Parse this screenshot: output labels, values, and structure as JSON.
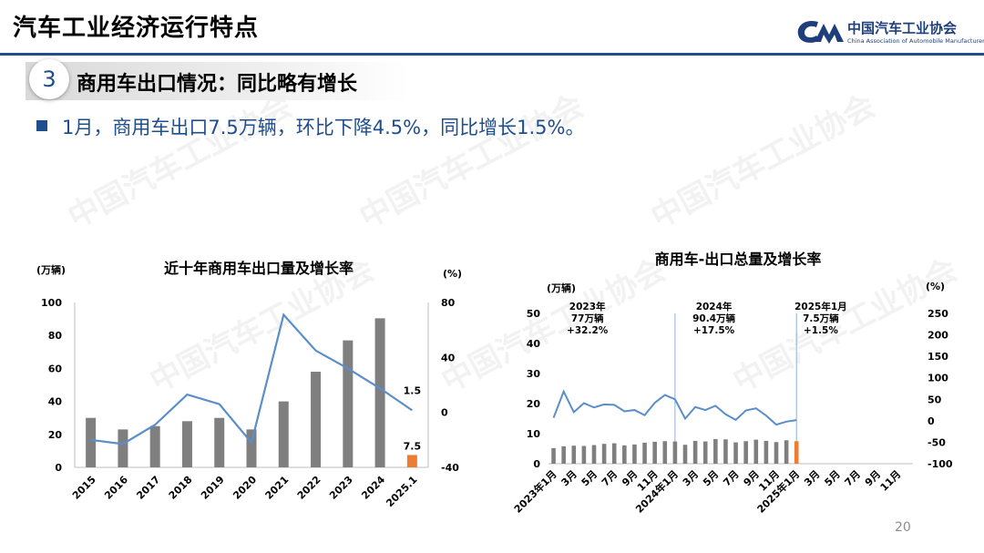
{
  "header": {
    "title": "汽车工业经济运行特点",
    "logo_cn": "中国汽车工业协会",
    "logo_en": "China Association of Automobile Manufacturers"
  },
  "section": {
    "number": "3",
    "title": "商用车出口情况：同比略有增长"
  },
  "bullet": {
    "text": "1月，商用车出口7.5万辆，环比下降4.5%，同比增长1.5%。"
  },
  "page_number": "20",
  "colors": {
    "accent": "#1f4e8c",
    "bar_gray": "#7f7f7f",
    "bar_highlight": "#ed7d31",
    "line_blue": "#5b8ec9"
  },
  "chart_data": [
    {
      "type": "bar",
      "title": "近十年商用车出口量及增长率",
      "left_unit": "(万辆)",
      "right_unit": "(%)",
      "categories": [
        "2015",
        "2016",
        "2017",
        "2018",
        "2019",
        "2020",
        "2021",
        "2022",
        "2023",
        "2024",
        "2025.1"
      ],
      "series": [
        {
          "kind": "bar",
          "axis": "left",
          "values": [
            30,
            23,
            25,
            28,
            30,
            23,
            40,
            58,
            77,
            90.4,
            7.5
          ],
          "highlight_last": true
        },
        {
          "kind": "line",
          "axis": "right",
          "values": [
            -20,
            -23,
            -9,
            13,
            6,
            -22,
            71,
            45,
            32,
            17.5,
            1.5
          ]
        }
      ],
      "left_ylim": [
        0,
        100
      ],
      "left_ticks": [
        "0",
        "20",
        "40",
        "60",
        "80",
        "100"
      ],
      "right_ylim": [
        -40,
        80
      ],
      "right_ticks": [
        "-40",
        "0",
        "40",
        "80"
      ],
      "data_labels": [
        {
          "category": "2025.1",
          "series": "bar",
          "text": "7.5"
        },
        {
          "category": "2025.1",
          "series": "line",
          "text": "1.5"
        }
      ]
    },
    {
      "type": "bar",
      "title": "商用车-出口总量及增长率",
      "left_unit": "(万辆)",
      "right_unit": "(%)",
      "tick_labels": [
        "2023年1月",
        "3月",
        "5月",
        "7月",
        "9月",
        "11月",
        "2024年1月",
        "3月",
        "5月",
        "7月",
        "9月",
        "11月",
        "2025年1月",
        "3月",
        "5月",
        "7月",
        "9月",
        "11月"
      ],
      "series": [
        {
          "kind": "bar",
          "axis": "left",
          "values": [
            5.2,
            5.8,
            6.0,
            5.9,
            6.2,
            6.6,
            6.8,
            6.1,
            6.4,
            7.0,
            7.3,
            7.5,
            7.4,
            6.3,
            7.6,
            7.4,
            8.2,
            8.1,
            7.1,
            7.5,
            8.0,
            7.6,
            7.2,
            7.8,
            7.5
          ],
          "highlight_last": true
        },
        {
          "kind": "line",
          "axis": "right",
          "values": [
            7,
            68,
            20,
            41,
            31,
            38,
            37,
            22,
            25,
            13,
            42,
            60,
            50,
            5,
            32,
            25,
            35,
            15,
            2,
            24,
            29,
            12,
            -9,
            -2,
            1.5
          ]
        }
      ],
      "left_ylim": [
        0,
        50
      ],
      "left_ticks": [
        "0",
        "10",
        "20",
        "30",
        "40",
        "50"
      ],
      "right_ylim": [
        -100,
        250
      ],
      "right_ticks": [
        "-100",
        "-50",
        "0",
        "50",
        "100",
        "150",
        "200",
        "250"
      ],
      "annotations": [
        {
          "lines": [
            "2023年",
            "77万辆",
            "+32.2%"
          ]
        },
        {
          "lines": [
            "2024年",
            "90.4万辆",
            "+17.5%"
          ]
        },
        {
          "lines": [
            "2025年1月",
            "7.5万辆",
            "+1.5%"
          ]
        }
      ],
      "total_months": 36
    }
  ]
}
